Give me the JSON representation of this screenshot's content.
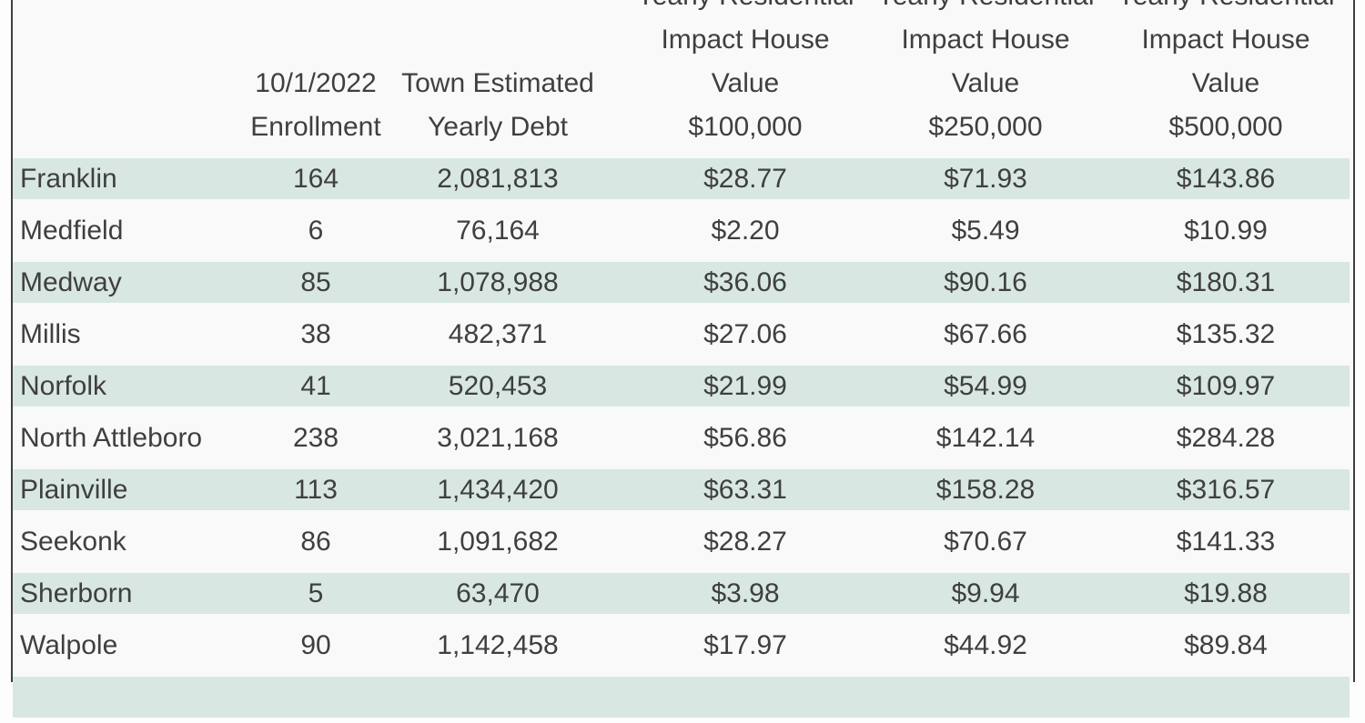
{
  "style": {
    "page_bg": "#fdfdfd",
    "row_color": "#f9f9f9",
    "band_color": "#d8e7e2",
    "text_color": "#3f3f3f",
    "border_color": "#3f3f3f"
  },
  "chart_data": {
    "type": "table",
    "title": "",
    "layout_hints": {
      "banding": "alternate rows teal, starting with first data row",
      "header_top_line_clipped_at_viewport_top": true,
      "last_row_clipped_at_viewport_bottom": true,
      "numeric_columns_alignment": "center",
      "town_column_alignment": "left"
    },
    "columns": [
      {
        "id": "town",
        "align": "left",
        "header_lines": []
      },
      {
        "id": "enrollment",
        "align": "center",
        "header_lines": [
          "10/1/2022",
          "Enrollment"
        ]
      },
      {
        "id": "yearly_debt",
        "align": "center",
        "header_lines": [
          "Town Estimated",
          "Yearly Debt"
        ]
      },
      {
        "id": "impact_100k",
        "align": "center",
        "header_lines": [
          "Yearly Residential",
          "Impact House",
          "Value",
          "$100,000"
        ]
      },
      {
        "id": "impact_250k",
        "align": "center",
        "header_lines": [
          "Yearly Residential",
          "Impact House",
          "Value",
          "$250,000"
        ]
      },
      {
        "id": "impact_500k",
        "align": "center",
        "header_lines": [
          "Yearly Residential",
          "Impact House",
          "Value",
          "$500,000"
        ]
      }
    ],
    "rows": [
      [
        "Franklin",
        "164",
        "2,081,813",
        "$28.77",
        "$71.93",
        "$143.86"
      ],
      [
        "Medfield",
        "6",
        "76,164",
        "$2.20",
        "$5.49",
        "$10.99"
      ],
      [
        "Medway",
        "85",
        "1,078,988",
        "$36.06",
        "$90.16",
        "$180.31"
      ],
      [
        "Millis",
        "38",
        "482,371",
        "$27.06",
        "$67.66",
        "$135.32"
      ],
      [
        "Norfolk",
        "41",
        "520,453",
        "$21.99",
        "$54.99",
        "$109.97"
      ],
      [
        "North Attleboro",
        "238",
        "3,021,168",
        "$56.86",
        "$142.14",
        "$284.28"
      ],
      [
        "Plainville",
        "113",
        "1,434,420",
        "$63.31",
        "$158.28",
        "$316.57"
      ],
      [
        "Seekonk",
        "86",
        "1,091,682",
        "$28.27",
        "$70.67",
        "$141.33"
      ],
      [
        "Sherborn",
        "5",
        "63,470",
        "$3.98",
        "$9.94",
        "$19.88"
      ],
      [
        "Walpole",
        "90",
        "1,142,458",
        "$17.97",
        "$44.92",
        "$89.84"
      ],
      [
        "",
        "",
        "",
        "",
        "",
        ""
      ]
    ]
  }
}
